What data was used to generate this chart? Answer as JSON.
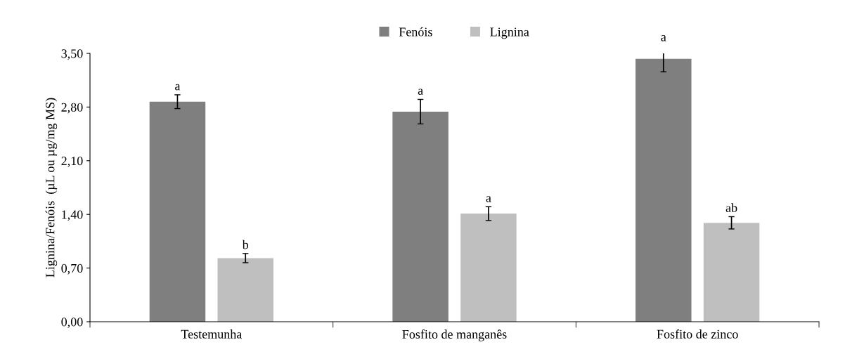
{
  "chart_data": {
    "type": "bar",
    "ylabel": "Lignina/Fenóis  (µL ou µg/mg MS)",
    "categories": [
      "Testemunha",
      "Fosfito de manganês",
      "Fosfito de zinco"
    ],
    "series": [
      {
        "name": "Fenóis",
        "color": "#7f7f7f",
        "values": [
          2.87,
          2.74,
          3.43
        ],
        "errors": [
          0.09,
          0.16,
          0.17
        ],
        "value_labels": [
          "a",
          "a",
          "a"
        ]
      },
      {
        "name": "Lignina",
        "color": "#bfbfbf",
        "values": [
          0.83,
          1.41,
          1.29
        ],
        "errors": [
          0.06,
          0.09,
          0.08
        ],
        "value_labels": [
          "b",
          "a",
          "ab"
        ]
      }
    ],
    "ylim": [
      0,
      3.5
    ],
    "yticks": [
      {
        "value": 0,
        "label": "0,00"
      },
      {
        "value": 0.7,
        "label": "0,70"
      },
      {
        "value": 1.4,
        "label": "1,40"
      },
      {
        "value": 2.1,
        "label": "2,10"
      },
      {
        "value": 2.8,
        "label": "2,80"
      },
      {
        "value": 3.5,
        "label": "3,50"
      }
    ],
    "grid": false,
    "legend": "top"
  }
}
